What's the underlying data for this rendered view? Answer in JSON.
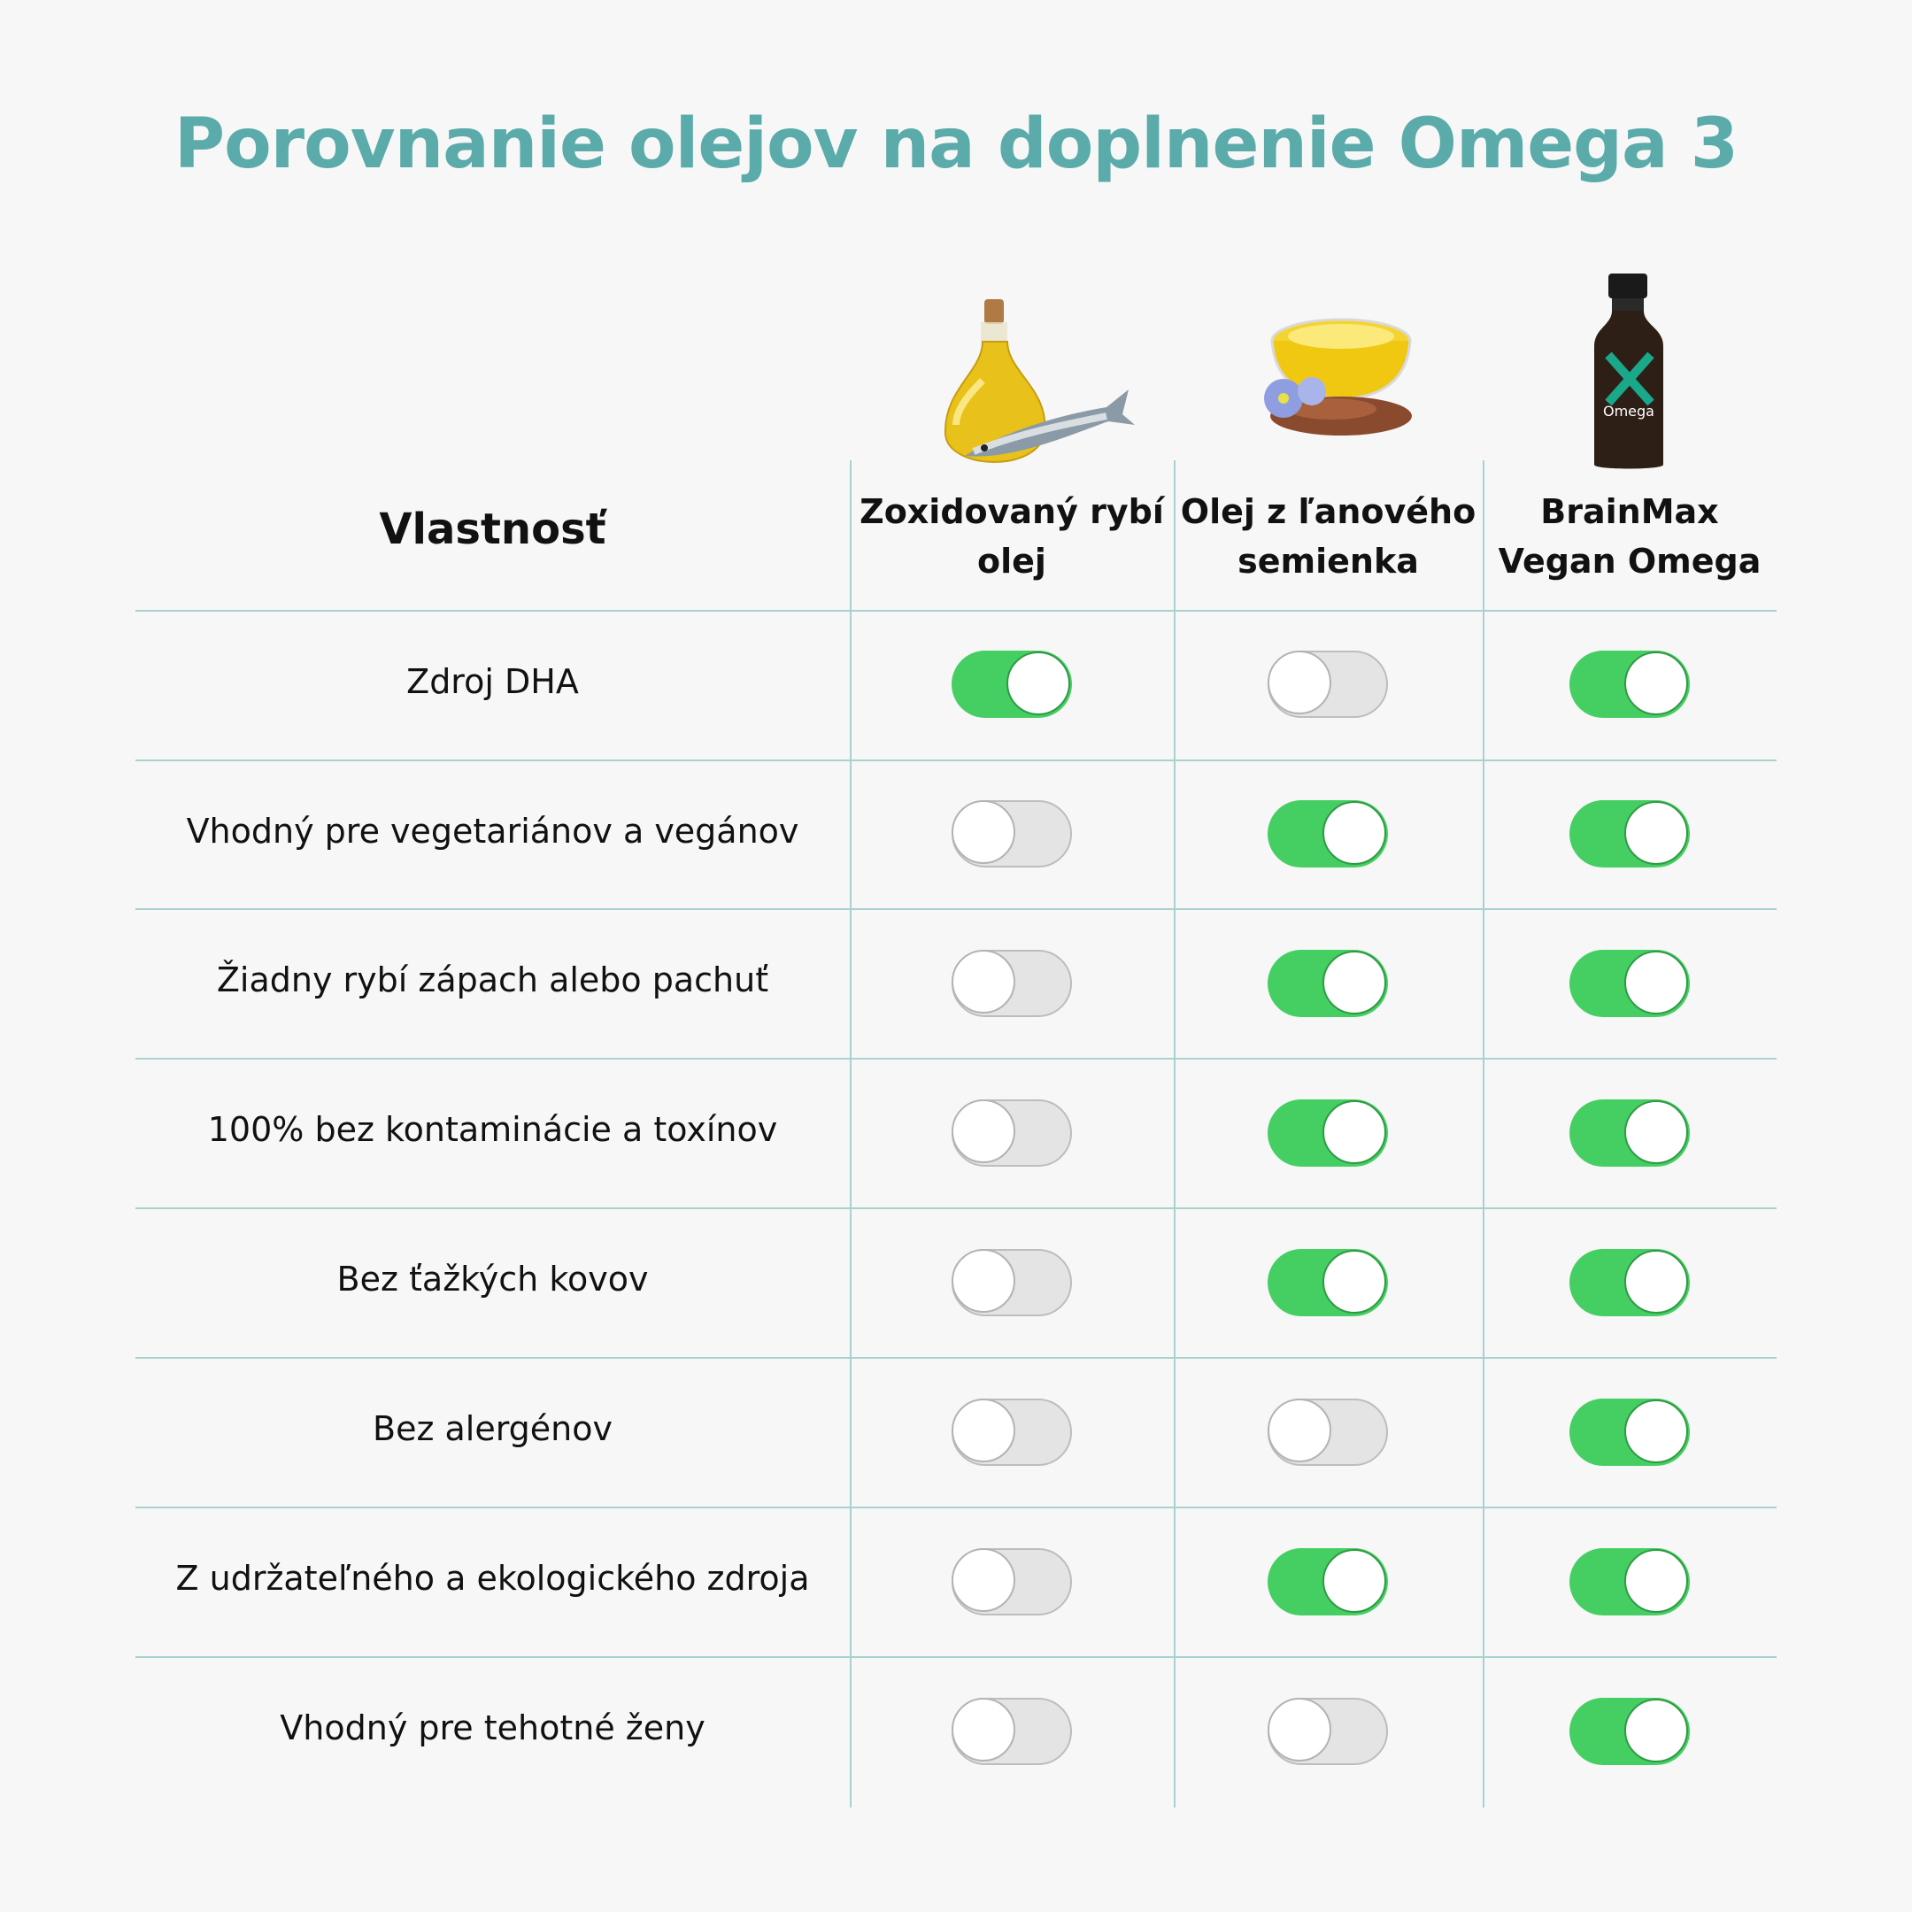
{
  "title": "Porovnanie olejov na doplnenie Omega 3",
  "table": {
    "property_header": "Vlastnosť",
    "columns": [
      {
        "label_line1": "Zoxidovaný rybí",
        "label_line2": "olej",
        "image": "oil-bottle-fish-icon"
      },
      {
        "label_line1": "Olej z ľanového",
        "label_line2": "semienka",
        "image": "flaxseed-oil-bowl-icon"
      },
      {
        "label_line1": "BrainMax",
        "label_line2": "Vegan Omega",
        "image": "brainmax-bottle-icon"
      }
    ],
    "rows": [
      {
        "label": "Zdroj DHA",
        "values": [
          true,
          false,
          true
        ]
      },
      {
        "label": "Vhodný pre vegetariánov a vegánov",
        "values": [
          false,
          true,
          true
        ]
      },
      {
        "label": "Žiadny rybí zápach alebo pachuť",
        "values": [
          false,
          true,
          true
        ]
      },
      {
        "label": "100% bez kontaminácie a toxínov",
        "values": [
          false,
          true,
          true
        ]
      },
      {
        "label": "Bez ťažkých kovov",
        "values": [
          false,
          true,
          true
        ]
      },
      {
        "label": "Bez alergénov",
        "values": [
          false,
          false,
          true
        ]
      },
      {
        "label": "Z udržateľného a ekologického zdroja",
        "values": [
          false,
          true,
          true
        ]
      },
      {
        "label": "Vhodný pre tehotné ženy",
        "values": [
          false,
          false,
          true
        ]
      }
    ]
  },
  "brand_bottle_label": "Omega",
  "colors": {
    "accent": "#5aabaa",
    "toggle_on": "#45cf62",
    "toggle_off": "#e4e4e4",
    "grid": "#a9d2cf"
  }
}
